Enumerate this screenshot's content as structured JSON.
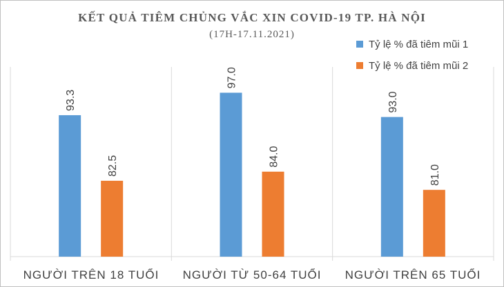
{
  "colors": {
    "series1": "#5b9bd5",
    "series2": "#ed7d31",
    "text": "#404040",
    "title": "#595959",
    "axis": "#d9d9d9"
  },
  "chart_data": {
    "type": "bar",
    "title": "KẾT QUẢ TIÊM CHỦNG VẮC XIN COVID-19 TP. HÀ NỘI",
    "subtitle": "(17H-17.11.2021)",
    "categories": [
      "NGƯỜI TRÊN 18 TUỔI",
      "NGƯỜI TỪ 50-64 TUỔI",
      "NGƯỜI TRÊN 65 TUỔI"
    ],
    "series": [
      {
        "name": "Tỷ lệ % đã tiêm mũi 1",
        "values": [
          93.3,
          97.0,
          93.0
        ],
        "labels": [
          "93.3",
          "97.0",
          "93.0"
        ],
        "color": "#5b9bd5"
      },
      {
        "name": "Tỷ lệ % đã tiêm mũi 2",
        "values": [
          82.5,
          84.0,
          81.0
        ],
        "labels": [
          "82.5",
          "84.0",
          "81.0"
        ],
        "color": "#ed7d31"
      }
    ],
    "ylim": [
      70,
      100
    ],
    "legend_position": "top-right",
    "grid": false,
    "category_separators": true
  }
}
